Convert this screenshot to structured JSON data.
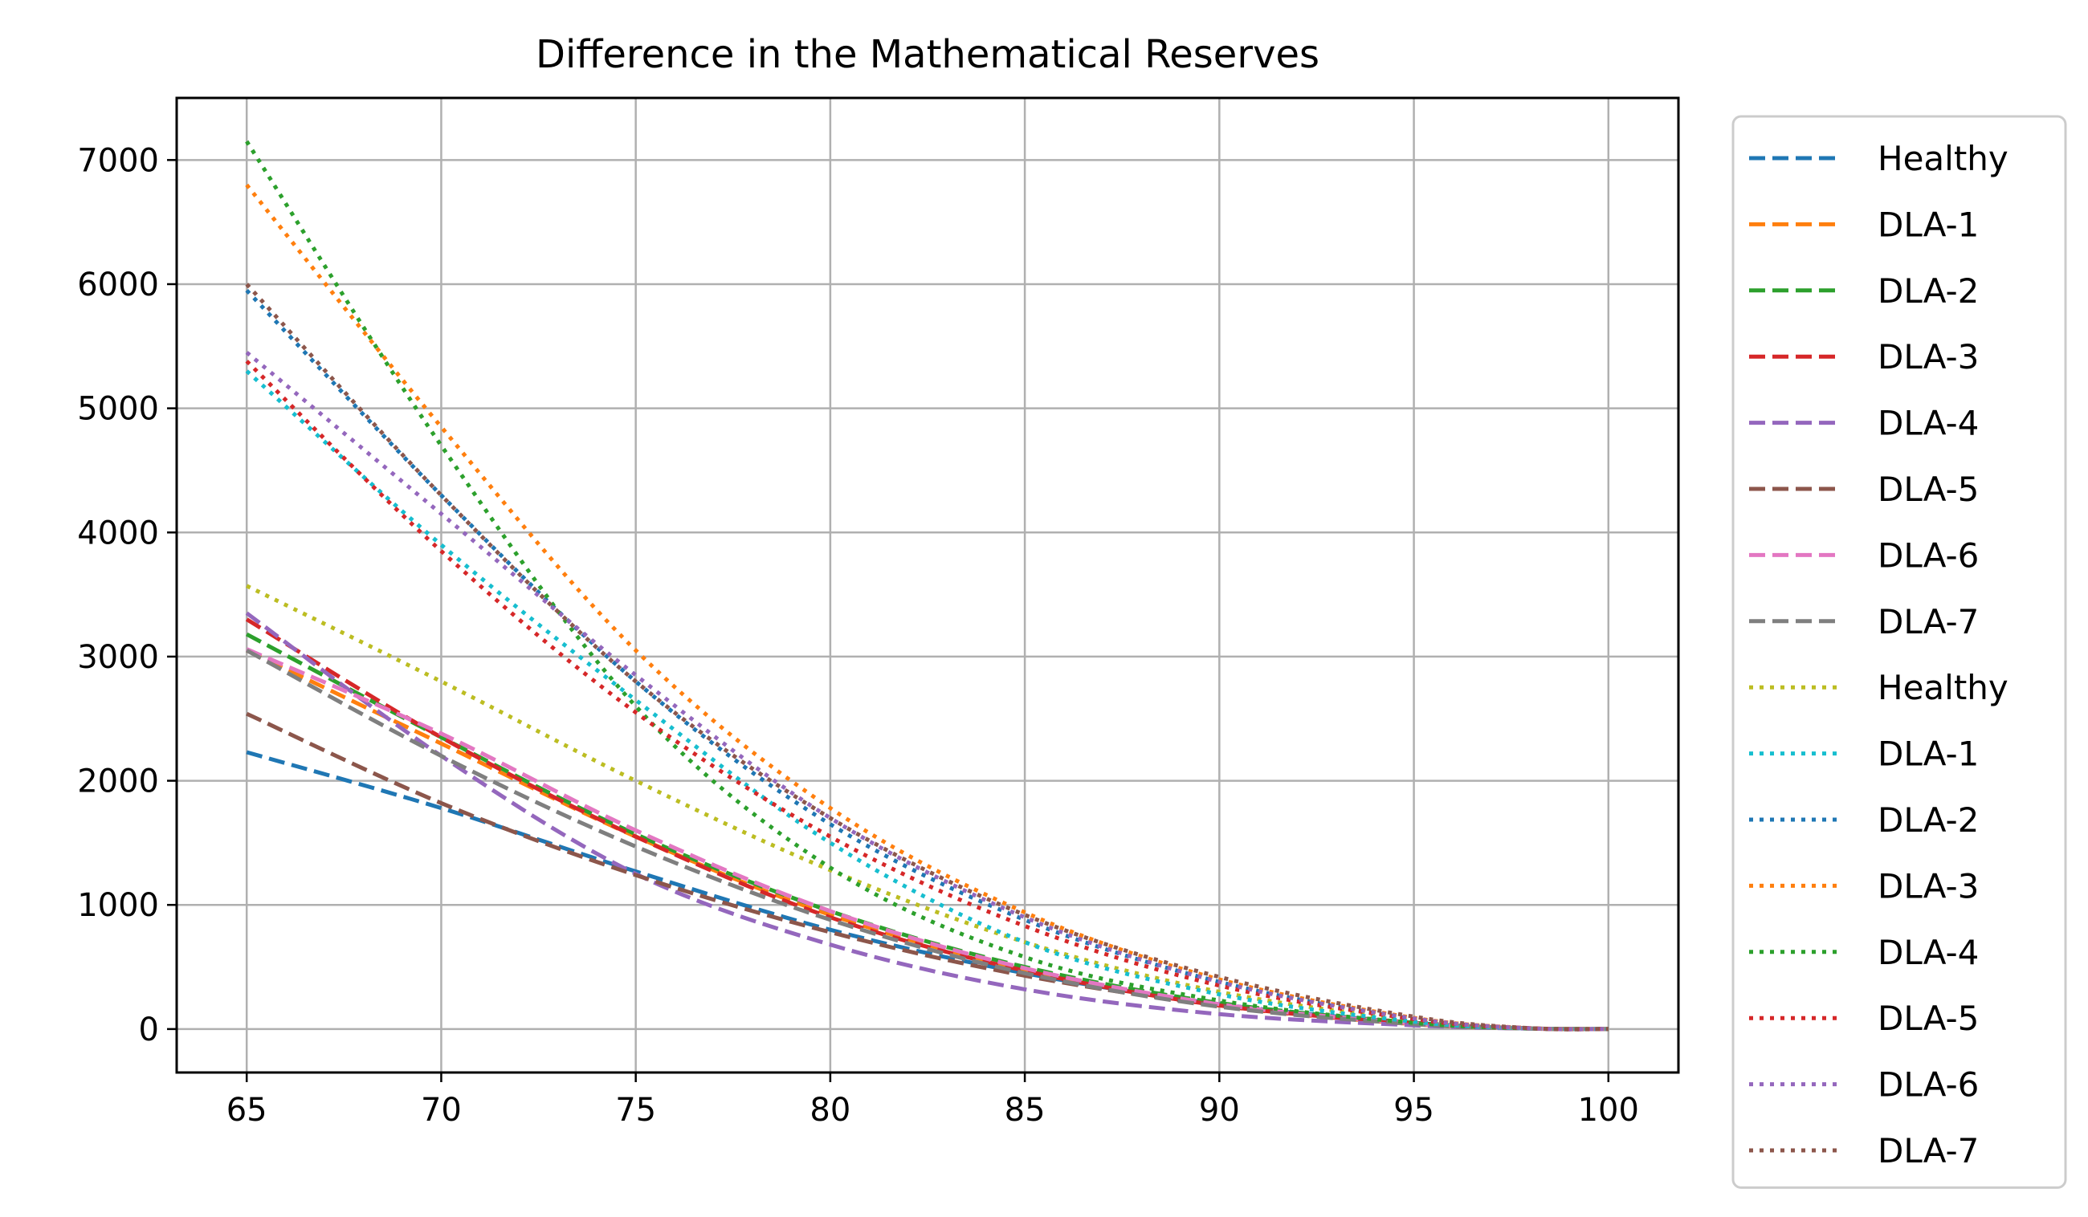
{
  "chart_data": {
    "type": "line",
    "title": "Difference in the Mathematical Reserves",
    "xlabel": "",
    "ylabel": "",
    "xlim": [
      63.2,
      101.8
    ],
    "ylim": [
      -350,
      7500
    ],
    "xticks": [
      65,
      70,
      75,
      80,
      85,
      90,
      95,
      100
    ],
    "yticks": [
      0,
      1000,
      2000,
      3000,
      4000,
      5000,
      6000,
      7000
    ],
    "grid": true,
    "legend_position": "outside-right",
    "x": [
      65,
      70,
      75,
      80,
      85,
      90,
      95,
      98,
      100
    ],
    "series": [
      {
        "name": "Healthy",
        "style": "dashed",
        "color": "#1f77b4",
        "values": [
          2230,
          1780,
          1270,
          800,
          450,
          200,
          50,
          5,
          0
        ]
      },
      {
        "name": "DLA-1",
        "style": "dashed",
        "color": "#ff7f0e",
        "values": [
          3050,
          2300,
          1550,
          920,
          480,
          190,
          40,
          4,
          0
        ]
      },
      {
        "name": "DLA-2",
        "style": "dashed",
        "color": "#2ca02c",
        "values": [
          3180,
          2350,
          1570,
          950,
          500,
          210,
          50,
          5,
          0
        ]
      },
      {
        "name": "DLA-3",
        "style": "dashed",
        "color": "#d62728",
        "values": [
          3300,
          2350,
          1550,
          900,
          470,
          190,
          45,
          5,
          0
        ]
      },
      {
        "name": "DLA-4",
        "style": "dashed",
        "color": "#9467bd",
        "values": [
          3350,
          2200,
          1250,
          680,
          320,
          120,
          30,
          3,
          0
        ]
      },
      {
        "name": "DLA-5",
        "style": "dashed",
        "color": "#8c564b",
        "values": [
          2540,
          1820,
          1240,
          780,
          430,
          190,
          50,
          5,
          0
        ]
      },
      {
        "name": "DLA-6",
        "style": "dashed",
        "color": "#e377c2",
        "values": [
          3060,
          2380,
          1600,
          950,
          490,
          200,
          45,
          4,
          0
        ]
      },
      {
        "name": "DLA-7",
        "style": "dashed",
        "color": "#7f7f7f",
        "values": [
          3050,
          2200,
          1470,
          880,
          450,
          180,
          40,
          4,
          0
        ]
      },
      {
        "name": "Healthy",
        "style": "dotted",
        "color": "#bcbd22",
        "values": [
          3570,
          2800,
          2000,
          1280,
          700,
          300,
          70,
          6,
          0
        ]
      },
      {
        "name": "DLA-1",
        "style": "dotted",
        "color": "#17becf",
        "values": [
          5300,
          3900,
          2650,
          1500,
          700,
          280,
          60,
          5,
          0
        ]
      },
      {
        "name": "DLA-2",
        "style": "dotted",
        "color": "#1f77b4",
        "values": [
          5950,
          4300,
          2800,
          1650,
          880,
          380,
          80,
          6,
          0
        ]
      },
      {
        "name": "DLA-3",
        "style": "dotted",
        "color": "#ff7f0e",
        "values": [
          6800,
          4850,
          3050,
          1780,
          940,
          400,
          90,
          7,
          0
        ]
      },
      {
        "name": "DLA-4",
        "style": "dotted",
        "color": "#2ca02c",
        "values": [
          7150,
          4700,
          2600,
          1300,
          580,
          230,
          50,
          5,
          0
        ]
      },
      {
        "name": "DLA-5",
        "style": "dotted",
        "color": "#d62728",
        "values": [
          5380,
          3850,
          2550,
          1550,
          830,
          350,
          80,
          6,
          0
        ]
      },
      {
        "name": "DLA-6",
        "style": "dotted",
        "color": "#9467bd",
        "values": [
          5450,
          4150,
          2850,
          1700,
          900,
          380,
          85,
          6,
          0
        ]
      },
      {
        "name": "DLA-7",
        "style": "dotted",
        "color": "#8c564b",
        "values": [
          6000,
          4300,
          2800,
          1700,
          920,
          420,
          100,
          7,
          0
        ]
      }
    ]
  }
}
